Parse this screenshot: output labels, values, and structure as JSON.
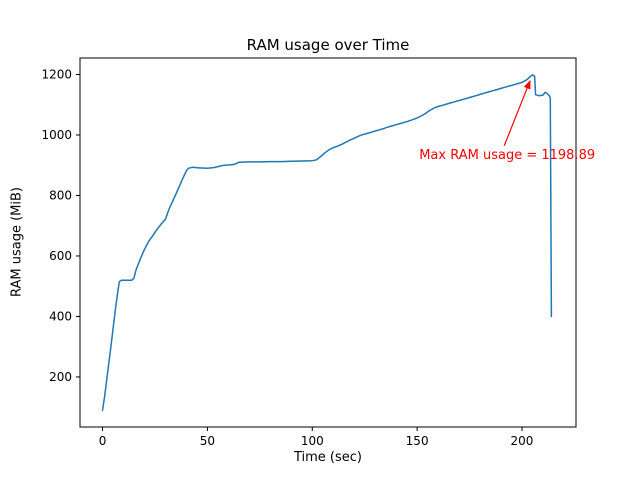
{
  "chart_data": {
    "type": "line",
    "title": "RAM usage over Time",
    "xlabel": "Time (sec)",
    "ylabel": "RAM usage (MiB)",
    "line_color": "#1f77b4",
    "line_width": 1.5,
    "grid": false,
    "xlim": [
      -10.75,
      225.75
    ],
    "ylim": [
      34.5,
      1254.5
    ],
    "xticks": [
      0,
      50,
      100,
      150,
      200
    ],
    "yticks": [
      200,
      400,
      600,
      800,
      1000,
      1200
    ],
    "x": [
      0,
      1,
      2,
      3,
      4,
      5,
      6,
      7,
      8,
      9,
      14,
      15,
      16,
      18,
      20,
      22,
      24,
      26,
      28,
      30,
      31,
      32,
      34,
      36,
      38,
      40,
      41,
      43,
      46,
      50,
      53,
      56,
      58,
      61,
      63,
      65,
      70,
      75,
      80,
      85,
      90,
      95,
      100,
      102,
      104,
      106,
      108,
      110,
      112,
      114,
      116,
      118,
      120,
      122,
      124,
      126,
      128,
      130,
      132,
      134,
      136,
      138,
      140,
      142,
      144,
      146,
      148,
      150,
      152,
      154,
      156,
      158,
      160,
      162,
      164,
      166,
      168,
      170,
      172,
      174,
      176,
      178,
      180,
      182,
      184,
      186,
      188,
      190,
      192,
      194,
      196,
      198,
      200,
      202,
      203,
      204,
      205,
      206,
      206.5,
      208,
      210,
      211,
      212,
      213,
      213.5,
      214
    ],
    "y": [
      90,
      135,
      190,
      245,
      300,
      358,
      415,
      468,
      515,
      520,
      520,
      527,
      555,
      590,
      622,
      648,
      668,
      688,
      706,
      722,
      742,
      760,
      790,
      820,
      852,
      882,
      890,
      893,
      891,
      890,
      892,
      897,
      900,
      901,
      903,
      910,
      911,
      911,
      912,
      912,
      913,
      914,
      915,
      918,
      929,
      941,
      951,
      958,
      963,
      969,
      976,
      983,
      989,
      996,
      1001,
      1005,
      1009,
      1013,
      1017,
      1021,
      1026,
      1030,
      1034,
      1038,
      1042,
      1046,
      1051,
      1056,
      1063,
      1071,
      1081,
      1089,
      1094,
      1098,
      1102,
      1106,
      1110,
      1114,
      1118,
      1122,
      1126,
      1130,
      1134,
      1138,
      1142,
      1146,
      1150,
      1154,
      1158,
      1162,
      1166,
      1170,
      1174,
      1181,
      1187,
      1194,
      1198.89,
      1195,
      1133,
      1130,
      1132,
      1141,
      1137,
      1130,
      1122,
      400
    ],
    "annotation": {
      "text": "Max RAM usage = 1198.89",
      "color": "#ff0000",
      "xy": [
        205,
        1198.89
      ],
      "xytext": [
        151,
        915
      ]
    }
  }
}
